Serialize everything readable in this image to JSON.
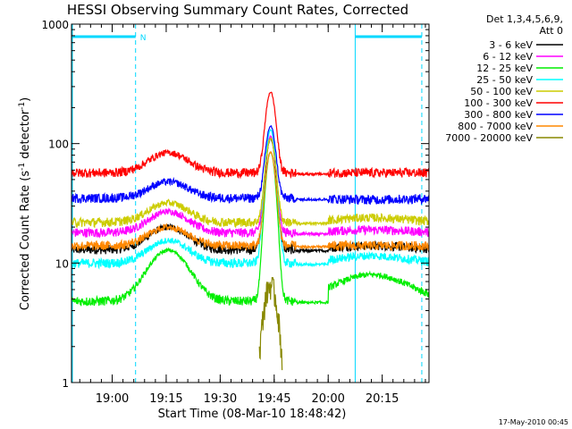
{
  "chart_data": {
    "type": "line",
    "title": "HESSI Observing Summary Count Rates, Corrected",
    "xlabel": "Start Time (08-Mar-10 18:48:42)",
    "ylabel_main": "Corrected Count Rate (s",
    "ylabel_sup1": "-1",
    "ylabel_mid": " detector",
    "ylabel_sup2": "-1",
    "ylabel_end": ")",
    "y_scale": "log",
    "ylim": [
      1,
      1000
    ],
    "xlim": [
      "18:48:42",
      "20:28:00"
    ],
    "x_ticks": [
      {
        "t": 19.0,
        "label": "19:00"
      },
      {
        "t": 19.25,
        "label": "19:15"
      },
      {
        "t": 19.5,
        "label": "19:30"
      },
      {
        "t": 19.75,
        "label": "19:45"
      },
      {
        "t": 20.0,
        "label": "20:00"
      },
      {
        "t": 20.25,
        "label": "20:15"
      }
    ],
    "y_ticks": [
      {
        "v": 1,
        "label": "1"
      },
      {
        "v": 10,
        "label": "10"
      },
      {
        "v": 100,
        "label": "100"
      },
      {
        "v": 1000,
        "label": "1000"
      }
    ],
    "legend": {
      "placement": "top-right outside",
      "header_line1": "Det 1,3,4,5,6,9,",
      "header_line2": "Att 0"
    },
    "series": [
      {
        "name": "3 - 6 keV",
        "color": "#000000",
        "base": 13,
        "hump": 7,
        "peak": 110,
        "post": 14
      },
      {
        "name": "6 - 12 keV",
        "color": "#ff00ff",
        "base": 18,
        "hump": 9,
        "peak": 115,
        "post": 19
      },
      {
        "name": "12 - 25 keV",
        "color": "#00ee00",
        "base": 4.8,
        "hump": 8,
        "peak": 85,
        "post": 8
      },
      {
        "name": "25 - 50 keV",
        "color": "#00ffff",
        "base": 10,
        "hump": 5.5,
        "peak": 130,
        "post": 11.5
      },
      {
        "name": "50 - 100 keV",
        "color": "#cccc00",
        "base": 22,
        "hump": 10,
        "peak": 110,
        "post": 24
      },
      {
        "name": "100 - 300 keV",
        "color": "#ff0000",
        "base": 57,
        "hump": 27,
        "peak": 270,
        "post": 57
      },
      {
        "name": "300 - 800 keV",
        "color": "#0000ff",
        "base": 35,
        "hump": 13,
        "peak": 140,
        "post": 34
      },
      {
        "name": "800 - 7000 keV",
        "color": "#ff8800",
        "base": 14,
        "hump": 6,
        "peak": 85,
        "post": 14
      },
      {
        "name": "7000 - 20000 keV",
        "color": "#888800",
        "base": 0,
        "hump": 0,
        "peak": 6.5,
        "post": 0
      }
    ],
    "flare_peak_time": "19:44",
    "intervals": {
      "night": [
        {
          "start": "18:48:42",
          "end": "19:06:30"
        },
        {
          "start": "20:07:30",
          "end": "20:26:00"
        }
      ],
      "night_marker": "N"
    }
  },
  "footer": {
    "timestamp": "17-May-2010 00:45"
  }
}
